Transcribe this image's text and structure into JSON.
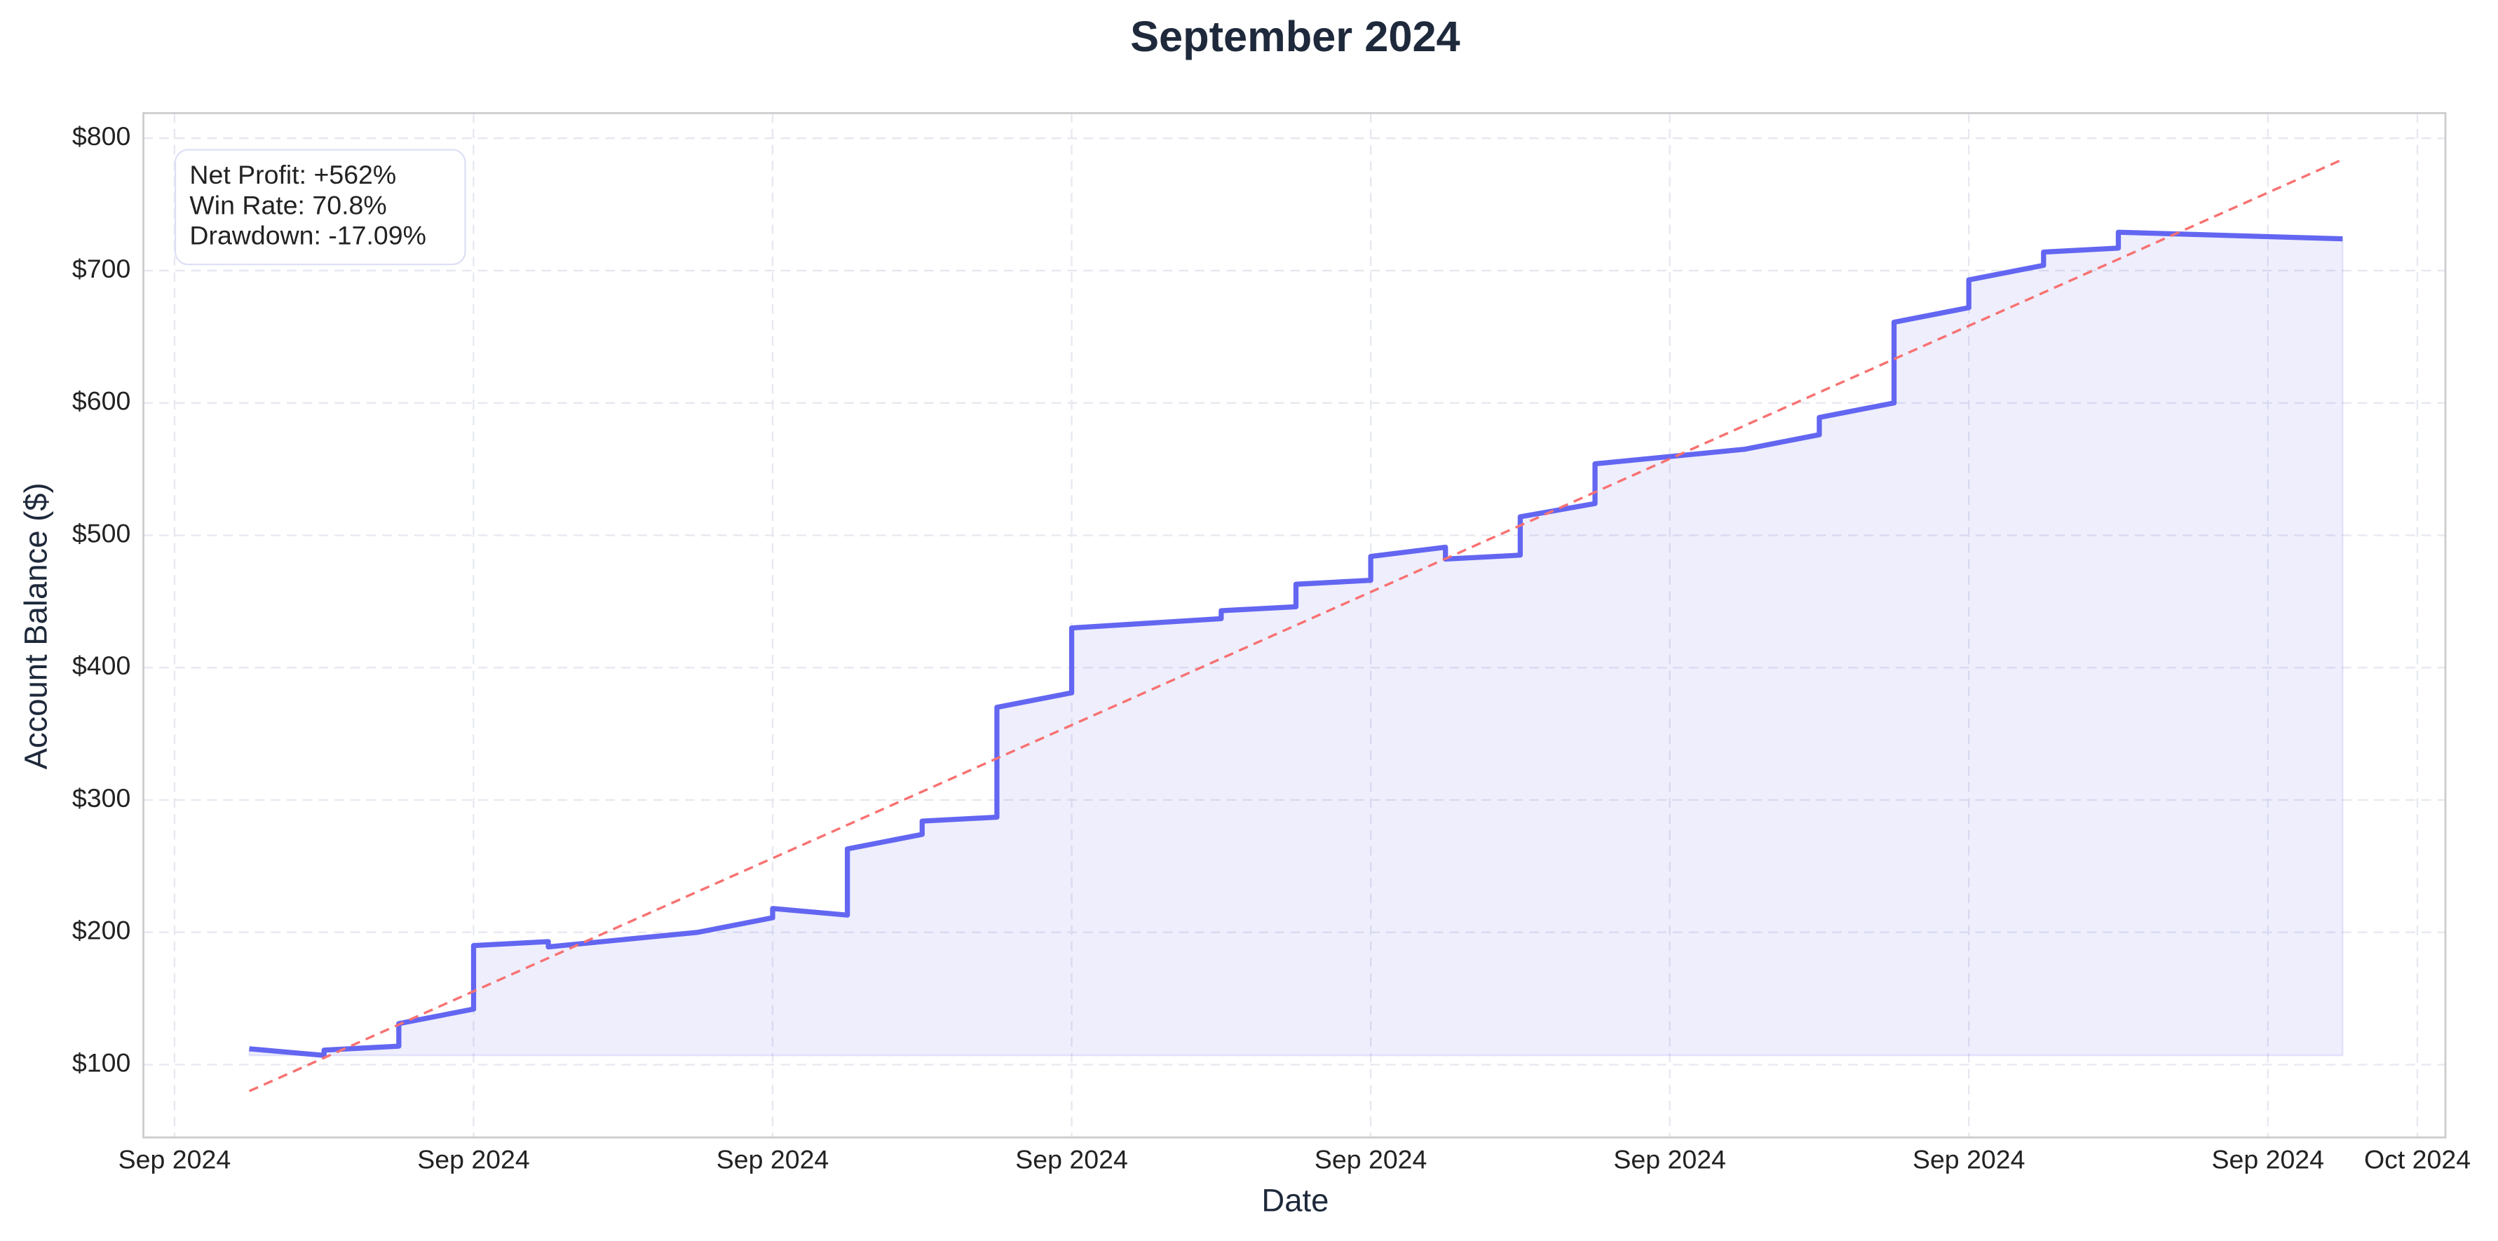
{
  "chart_data": {
    "type": "line",
    "title": "September 2024",
    "xlabel": "Date",
    "ylabel": "Account Balance ($)",
    "annotations": [
      "Net Profit: +562%",
      "Win Rate: 70.8%",
      "Drawdown: -17.09%"
    ],
    "grid": true,
    "fill": true,
    "xlim": [
      "2024-08-31T14:00",
      "2024-10-01T09:00"
    ],
    "xticks": [
      {
        "value": "2024-09-01",
        "label": "Sep 2024"
      },
      {
        "value": "2024-09-05",
        "label": "Sep 2024"
      },
      {
        "value": "2024-09-09",
        "label": "Sep 2024"
      },
      {
        "value": "2024-09-13",
        "label": "Sep 2024"
      },
      {
        "value": "2024-09-17",
        "label": "Sep 2024"
      },
      {
        "value": "2024-09-21",
        "label": "Sep 2024"
      },
      {
        "value": "2024-09-25",
        "label": "Sep 2024"
      },
      {
        "value": "2024-09-29",
        "label": "Sep 2024"
      },
      {
        "value": "2024-10-01",
        "label": "Oct 2024"
      }
    ],
    "ylim": [
      45,
      819
    ],
    "yticks": [
      {
        "value": 100,
        "label": "$100"
      },
      {
        "value": 200,
        "label": "$200"
      },
      {
        "value": 300,
        "label": "$300"
      },
      {
        "value": 400,
        "label": "$400"
      },
      {
        "value": 500,
        "label": "$500"
      },
      {
        "value": 600,
        "label": "$600"
      },
      {
        "value": 700,
        "label": "$700"
      },
      {
        "value": 800,
        "label": "$800"
      }
    ],
    "series": [
      {
        "color": "#6366f1",
        "style": "solid",
        "x": [
          "2024-09-02",
          "2024-09-03",
          "2024-09-03",
          "2024-09-04",
          "2024-09-04",
          "2024-09-05",
          "2024-09-05",
          "2024-09-06",
          "2024-09-06",
          "2024-09-08",
          "2024-09-09",
          "2024-09-09",
          "2024-09-10",
          "2024-09-10",
          "2024-09-11",
          "2024-09-11",
          "2024-09-12",
          "2024-09-12",
          "2024-09-13",
          "2024-09-13",
          "2024-09-15",
          "2024-09-15",
          "2024-09-16",
          "2024-09-16",
          "2024-09-17",
          "2024-09-17",
          "2024-09-18",
          "2024-09-18",
          "2024-09-19",
          "2024-09-19",
          "2024-09-20",
          "2024-09-20",
          "2024-09-22",
          "2024-09-23",
          "2024-09-23",
          "2024-09-24",
          "2024-09-24",
          "2024-09-25",
          "2024-09-25",
          "2024-09-26",
          "2024-09-26",
          "2024-09-27",
          "2024-09-27",
          "2024-09-30"
        ],
        "values": [
          112,
          107,
          111,
          114,
          131,
          142,
          190,
          193,
          189,
          200,
          211,
          218,
          213,
          263,
          274,
          284,
          287,
          370,
          381,
          430,
          437,
          443,
          446,
          463,
          466,
          484,
          491,
          482,
          485,
          514,
          524,
          554,
          565,
          576,
          589,
          600,
          661,
          672,
          693,
          704,
          714,
          717,
          729,
          724
        ]
      },
      {
        "color": "#f87171",
        "style": "dashed",
        "x": [
          "2024-09-02",
          "2024-09-30"
        ],
        "values": [
          80,
          784
        ]
      }
    ]
  }
}
